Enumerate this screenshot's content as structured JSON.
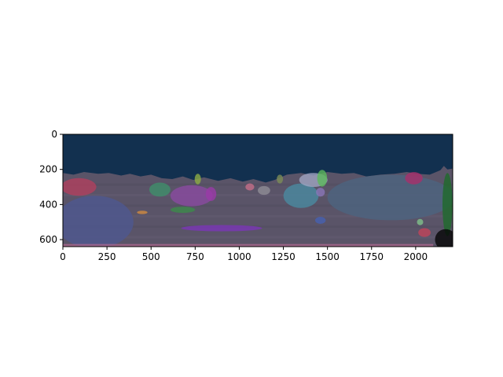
{
  "chart_data": {
    "type": "heatmap",
    "title": "",
    "xlabel": "",
    "ylabel": "",
    "xlim": [
      0,
      2210
    ],
    "ylim": [
      640,
      0
    ],
    "grid": false,
    "x_ticks": [
      {
        "value": 0,
        "label": "0"
      },
      {
        "value": 250,
        "label": "250"
      },
      {
        "value": 500,
        "label": "500"
      },
      {
        "value": 750,
        "label": "750"
      },
      {
        "value": 1000,
        "label": "1000"
      },
      {
        "value": 1250,
        "label": "1250"
      },
      {
        "value": 1500,
        "label": "1500"
      },
      {
        "value": 1750,
        "label": "1750"
      },
      {
        "value": 2000,
        "label": "2000"
      }
    ],
    "y_ticks": [
      {
        "value": 0,
        "label": "0"
      },
      {
        "value": 200,
        "label": "200"
      },
      {
        "value": 400,
        "label": "400"
      },
      {
        "value": 600,
        "label": "600"
      }
    ],
    "background": "#12304f",
    "terrain_color": "#5a5468",
    "segments": [
      {
        "name": "pink-rock-left",
        "color": "#b0405e",
        "cx": 90,
        "cy": 300,
        "rx": 100,
        "ry": 50
      },
      {
        "name": "blue-boulder-left",
        "color": "#4e5890",
        "cx": 180,
        "cy": 500,
        "rx": 220,
        "ry": 150
      },
      {
        "name": "teal-rock",
        "color": "#3e8f6a",
        "cx": 550,
        "cy": 315,
        "rx": 60,
        "ry": 40
      },
      {
        "name": "purple-rock",
        "color": "#8a4aa0",
        "cx": 730,
        "cy": 350,
        "rx": 120,
        "ry": 60
      },
      {
        "name": "yellow-green-rock",
        "color": "#8cab44",
        "cx": 765,
        "cy": 255,
        "rx": 18,
        "ry": 30
      },
      {
        "name": "magenta-rock",
        "color": "#9a3aa8",
        "cx": 840,
        "cy": 340,
        "rx": 30,
        "ry": 40
      },
      {
        "name": "green-patch",
        "color": "#3c8a4a",
        "cx": 680,
        "cy": 430,
        "rx": 70,
        "ry": 18
      },
      {
        "name": "violet-streak",
        "color": "#7b36b6",
        "cx": 900,
        "cy": 535,
        "rx": 230,
        "ry": 18
      },
      {
        "name": "pink-small",
        "color": "#c46e88",
        "cx": 1060,
        "cy": 300,
        "rx": 25,
        "ry": 20
      },
      {
        "name": "gray-rock",
        "color": "#8f8c95",
        "cx": 1140,
        "cy": 320,
        "rx": 35,
        "ry": 25
      },
      {
        "name": "olive-rock",
        "color": "#7c8c56",
        "cx": 1230,
        "cy": 255,
        "rx": 18,
        "ry": 25
      },
      {
        "name": "steel-blue-rock",
        "color": "#4a8aa0",
        "cx": 1350,
        "cy": 350,
        "rx": 100,
        "ry": 70
      },
      {
        "name": "silver-rock",
        "color": "#9fa4c0",
        "cx": 1420,
        "cy": 260,
        "rx": 80,
        "ry": 40
      },
      {
        "name": "green-boulder",
        "color": "#5cb85c",
        "cx": 1470,
        "cy": 250,
        "rx": 28,
        "ry": 48
      },
      {
        "name": "lavender-rock",
        "color": "#8a76b8",
        "cx": 1460,
        "cy": 330,
        "rx": 25,
        "ry": 25
      },
      {
        "name": "slate-hill-right",
        "color": "#4c6480",
        "cx": 1860,
        "cy": 360,
        "rx": 360,
        "ry": 130
      },
      {
        "name": "crimson-rock-right",
        "color": "#a8306c",
        "cx": 1990,
        "cy": 250,
        "rx": 50,
        "ry": 35
      },
      {
        "name": "dark-green-edge",
        "color": "#1e6a2a",
        "cx": 2180,
        "cy": 400,
        "rx": 28,
        "ry": 180
      },
      {
        "name": "black-corner",
        "color": "#050505",
        "cx": 2170,
        "cy": 600,
        "rx": 60,
        "ry": 60
      },
      {
        "name": "orange-pebble",
        "color": "#d08a40",
        "cx": 450,
        "cy": 445,
        "rx": 30,
        "ry": 10
      },
      {
        "name": "red-pebble",
        "color": "#c0445a",
        "cx": 2050,
        "cy": 560,
        "rx": 35,
        "ry": 25
      },
      {
        "name": "mint-pebble",
        "color": "#7fc08a",
        "cx": 2025,
        "cy": 500,
        "rx": 18,
        "ry": 18
      },
      {
        "name": "blue-pebble",
        "color": "#4660b0",
        "cx": 1460,
        "cy": 490,
        "rx": 30,
        "ry": 20
      }
    ]
  }
}
